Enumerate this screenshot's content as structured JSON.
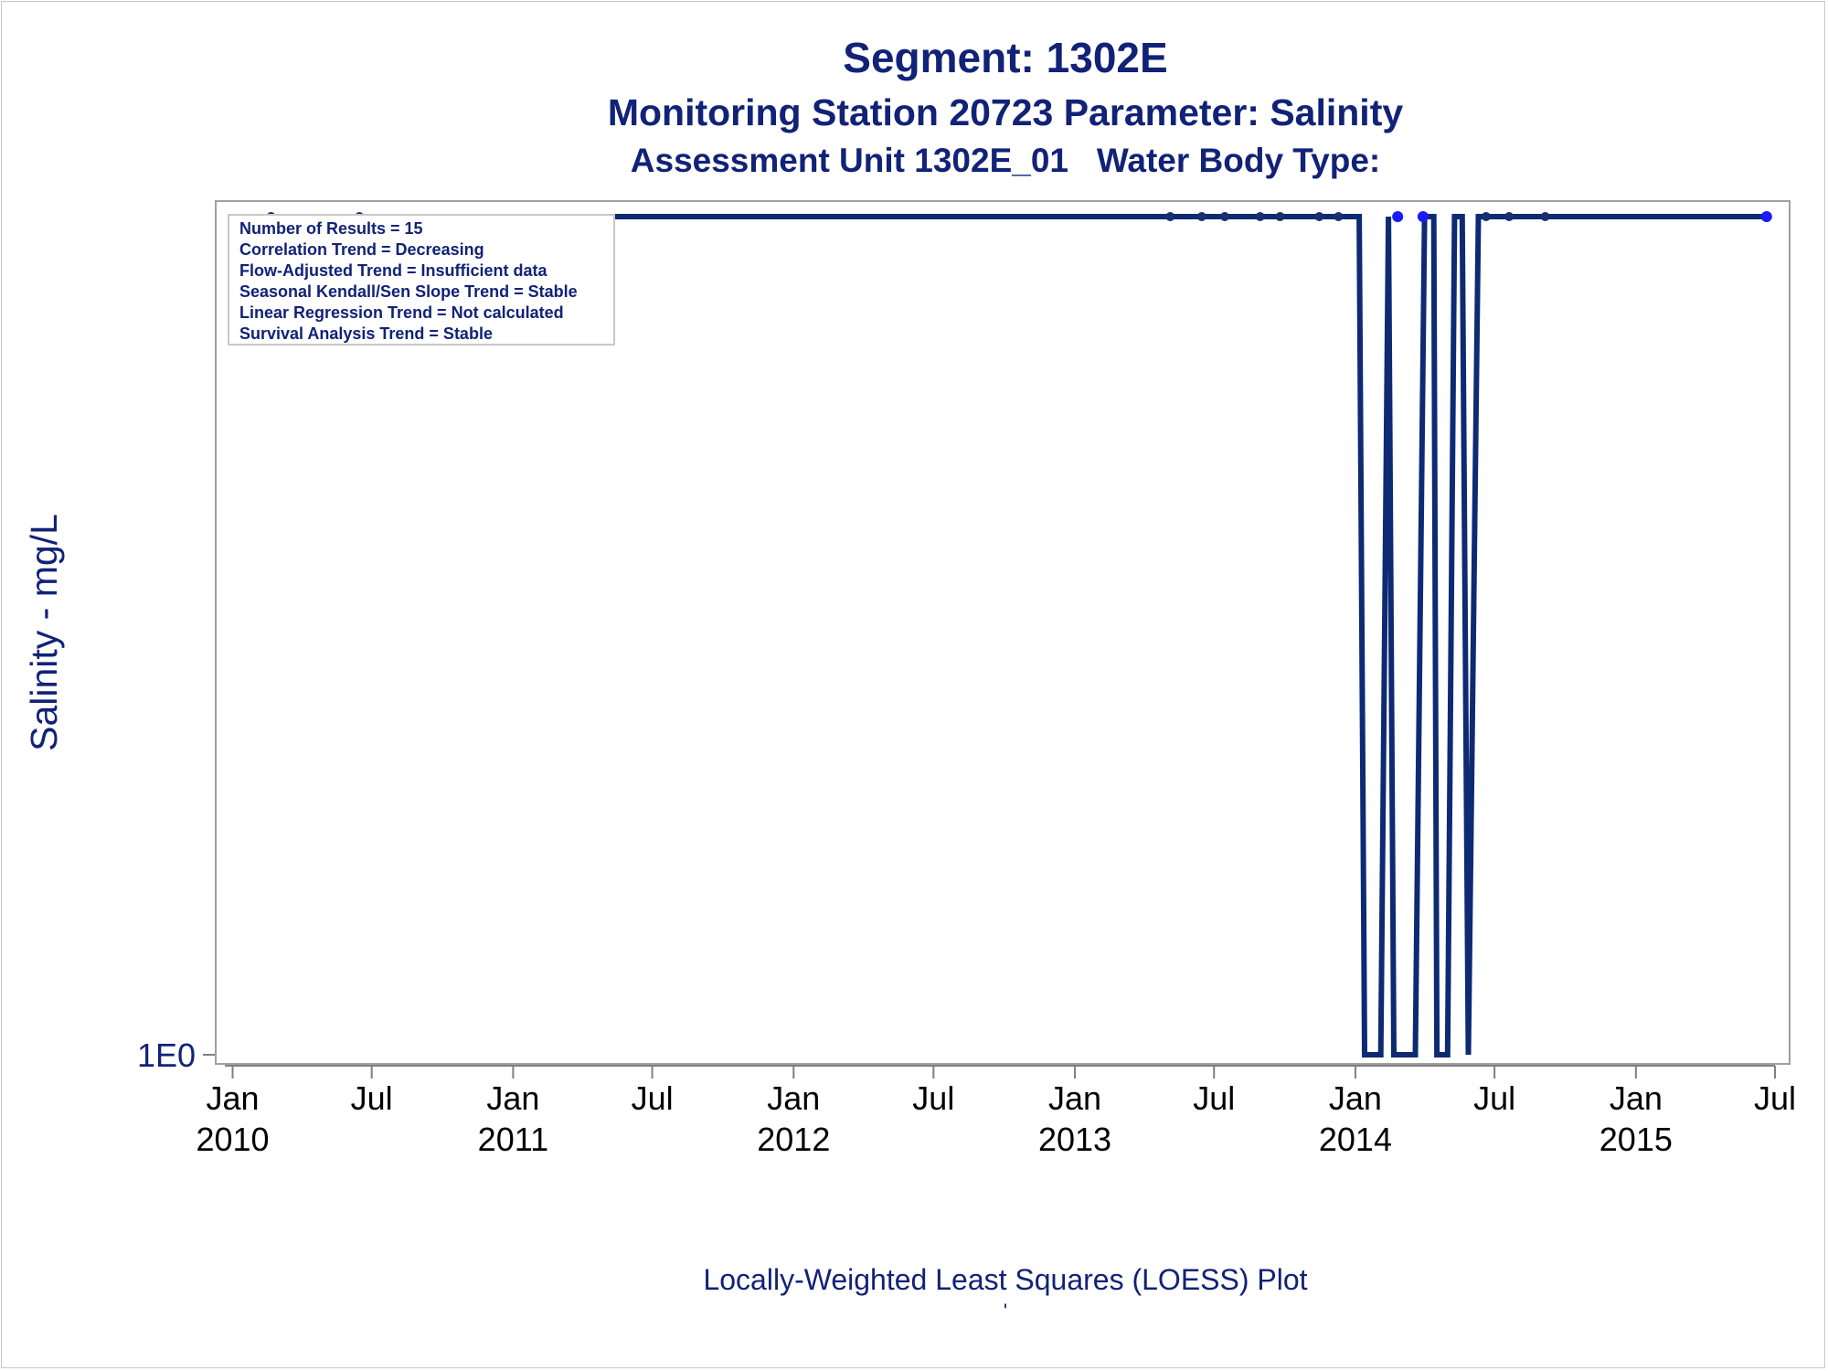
{
  "titles": {
    "line1": "Segment: 1302E",
    "line2": "Monitoring Station 20723 Parameter: Salinity",
    "line3": "Assessment Unit 1302E_01   Water Body Type:"
  },
  "footnote": "Locally-Weighted Least Squares (LOESS) Plot",
  "footnote_mark": "'",
  "colors": {
    "title": "#112277",
    "loess_line": "#0d2a73",
    "point_censored": "#17306f",
    "point_detect": "#1a1aff",
    "axis": "#7f7f7f",
    "plot_border": "#a0a0a0",
    "legend_border": "#c8c8c8"
  },
  "chart_data": {
    "type": "line",
    "ylabel": "Salinity - mg/L",
    "xlabel": "",
    "y_scale": "log",
    "y_ticks": [
      {
        "value": 1,
        "label": "1E0"
      }
    ],
    "x_ticks": [
      {
        "date": "2010-01-01",
        "line1": "Jan",
        "line2": "2010"
      },
      {
        "date": "2010-07-01",
        "line1": "Jul",
        "line2": ""
      },
      {
        "date": "2011-01-01",
        "line1": "Jan",
        "line2": "2011"
      },
      {
        "date": "2011-07-01",
        "line1": "Jul",
        "line2": ""
      },
      {
        "date": "2012-01-01",
        "line1": "Jan",
        "line2": "2012"
      },
      {
        "date": "2012-07-01",
        "line1": "Jul",
        "line2": ""
      },
      {
        "date": "2013-01-01",
        "line1": "Jan",
        "line2": "2013"
      },
      {
        "date": "2013-07-01",
        "line1": "Jul",
        "line2": ""
      },
      {
        "date": "2014-01-01",
        "line1": "Jan",
        "line2": "2014"
      },
      {
        "date": "2014-07-01",
        "line1": "Jul",
        "line2": ""
      },
      {
        "date": "2015-01-01",
        "line1": "Jan",
        "line2": "2015"
      },
      {
        "date": "2015-07-01",
        "line1": "Jul",
        "line2": ""
      }
    ],
    "x_range": [
      "2009-12-10",
      "2015-07-20"
    ],
    "grid": false,
    "legend_position": "top-left",
    "stats_box": [
      "Number of Results = 15",
      "Correlation Trend = Decreasing",
      "Flow-Adjusted Trend = Insufficient data",
      "Seasonal Kendall/Sen Slope Trend = Stable",
      "Linear Regression Trend = Not calculated",
      "Survival Analysis Trend = Stable"
    ],
    "series": [
      {
        "type": "line",
        "points": [
          {
            "x": "2010-02-20",
            "y": "top"
          },
          {
            "x": "2014-01-06",
            "y": "top"
          },
          {
            "x": "2014-01-13",
            "y": 1
          },
          {
            "x": "2014-02-03",
            "y": 1
          },
          {
            "x": "2014-02-13",
            "y": "top"
          },
          {
            "x": "2014-02-20",
            "y": 1
          },
          {
            "x": "2014-03-20",
            "y": 1
          },
          {
            "x": "2014-04-01",
            "y": "top"
          },
          {
            "x": "2014-04-13",
            "y": "top"
          },
          {
            "x": "2014-04-17",
            "y": 1
          },
          {
            "x": "2014-05-01",
            "y": 1
          },
          {
            "x": "2014-05-10",
            "y": "top"
          },
          {
            "x": "2014-05-20",
            "y": "top"
          },
          {
            "x": "2014-05-28",
            "y": 1
          },
          {
            "x": "2014-06-10",
            "y": "top"
          },
          {
            "x": "2015-06-20",
            "y": "top"
          }
        ]
      },
      {
        "type": "scatter",
        "marker": "censored",
        "x": [
          "2010-02-20",
          "2010-06-15",
          "2013-05-05",
          "2013-06-15",
          "2013-07-15",
          "2013-08-30",
          "2013-09-25",
          "2013-11-15",
          "2013-12-10",
          "2014-06-20",
          "2014-07-20",
          "2014-09-05"
        ]
      },
      {
        "type": "scatter",
        "marker": "detect",
        "x": [
          "2014-02-25",
          "2014-03-30",
          "2015-06-20"
        ]
      }
    ]
  }
}
